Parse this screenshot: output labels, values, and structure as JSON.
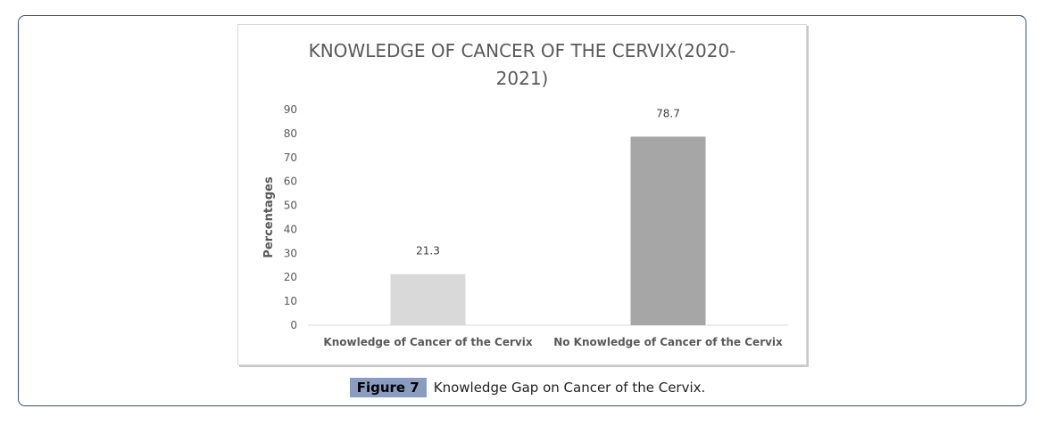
{
  "chart_data": {
    "type": "bar",
    "title_lines": [
      "KNOWLEDGE OF CANCER OF THE CERVIX(2020-",
      "2021)"
    ],
    "categories": [
      "Knowledge of Cancer of the Cervix",
      "No Knowledge of Cancer of the Cervix"
    ],
    "values": [
      21.3,
      78.7
    ],
    "data_labels": [
      "21.3",
      "78.7"
    ],
    "bar_colors": [
      "#d9d9d9",
      "#a6a6a6"
    ],
    "xlabel": "",
    "ylabel": "Percentages",
    "ylim": [
      0,
      90
    ],
    "yticks": [
      0,
      10,
      20,
      30,
      40,
      50,
      60,
      70,
      80,
      90
    ],
    "grid": false,
    "legend": "none"
  },
  "caption": {
    "label": "Figure 7",
    "text": "Knowledge Gap on Cancer of the Cervix."
  },
  "colors": {
    "frame_border": "#2f4f7f",
    "caption_label_bg": "#8a9dc0",
    "axis_text": "#595959"
  }
}
